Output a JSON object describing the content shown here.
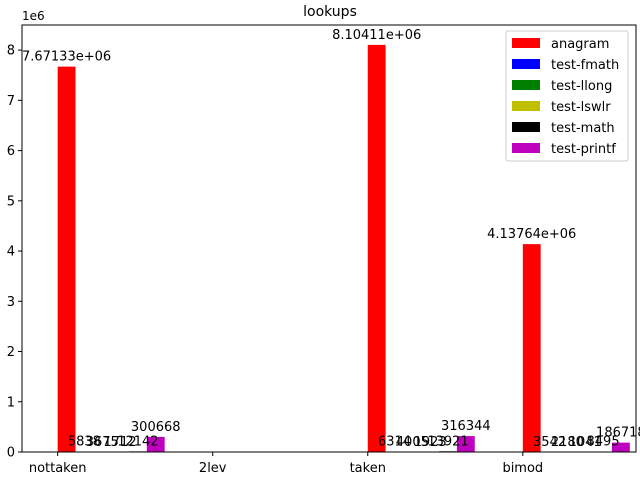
{
  "chart_data": {
    "type": "bar",
    "title": "lookups",
    "xlabel": "",
    "ylabel": "",
    "y_offset_label": "1e6",
    "categories": [
      "nottaken",
      "2lev",
      "taken",
      "bimod"
    ],
    "ylim": [
      0,
      8500000
    ],
    "yticks": [
      0,
      1000000,
      2000000,
      3000000,
      4000000,
      5000000,
      6000000,
      7000000,
      8000000
    ],
    "ytick_labels": [
      "0",
      "1",
      "2",
      "3",
      "4",
      "5",
      "6",
      "7",
      "8"
    ],
    "legend_position": "top-right",
    "grid": false,
    "series": [
      {
        "name": "anagram",
        "color": "#ff0000",
        "values": [
          7671330,
          null,
          8104110,
          4137640
        ],
        "labels": [
          "7.67133e+06",
          "",
          "8.10411e+06",
          "4.13764e+06"
        ]
      },
      {
        "name": "test-fmath",
        "color": "#0000ff",
        "values": [
          5838,
          null,
          6314,
          3542
        ],
        "labels": [
          "5838",
          "",
          "6314",
          "3542"
        ]
      },
      {
        "name": "test-llong",
        "color": "#008000",
        "values": [
          3675,
          null,
          4005,
          2180
        ],
        "labels": [
          "3675",
          "",
          "4005",
          "2180"
        ]
      },
      {
        "name": "test-lswlr",
        "color": "#bfbf00",
        "values": [
          1712,
          null,
          1923,
          1041
        ],
        "labels": [
          "1712",
          "",
          "1923",
          "1041"
        ]
      },
      {
        "name": "test-math",
        "color": "#000000",
        "values": [
          12142,
          null,
          13921,
          8495
        ],
        "labels": [
          "12142",
          "",
          "13921",
          "8495"
        ]
      },
      {
        "name": "test-printf",
        "color": "#bf00bf",
        "values": [
          300668,
          null,
          316344,
          186718
        ],
        "labels": [
          "300668",
          "",
          "316344",
          "186718"
        ]
      }
    ]
  }
}
